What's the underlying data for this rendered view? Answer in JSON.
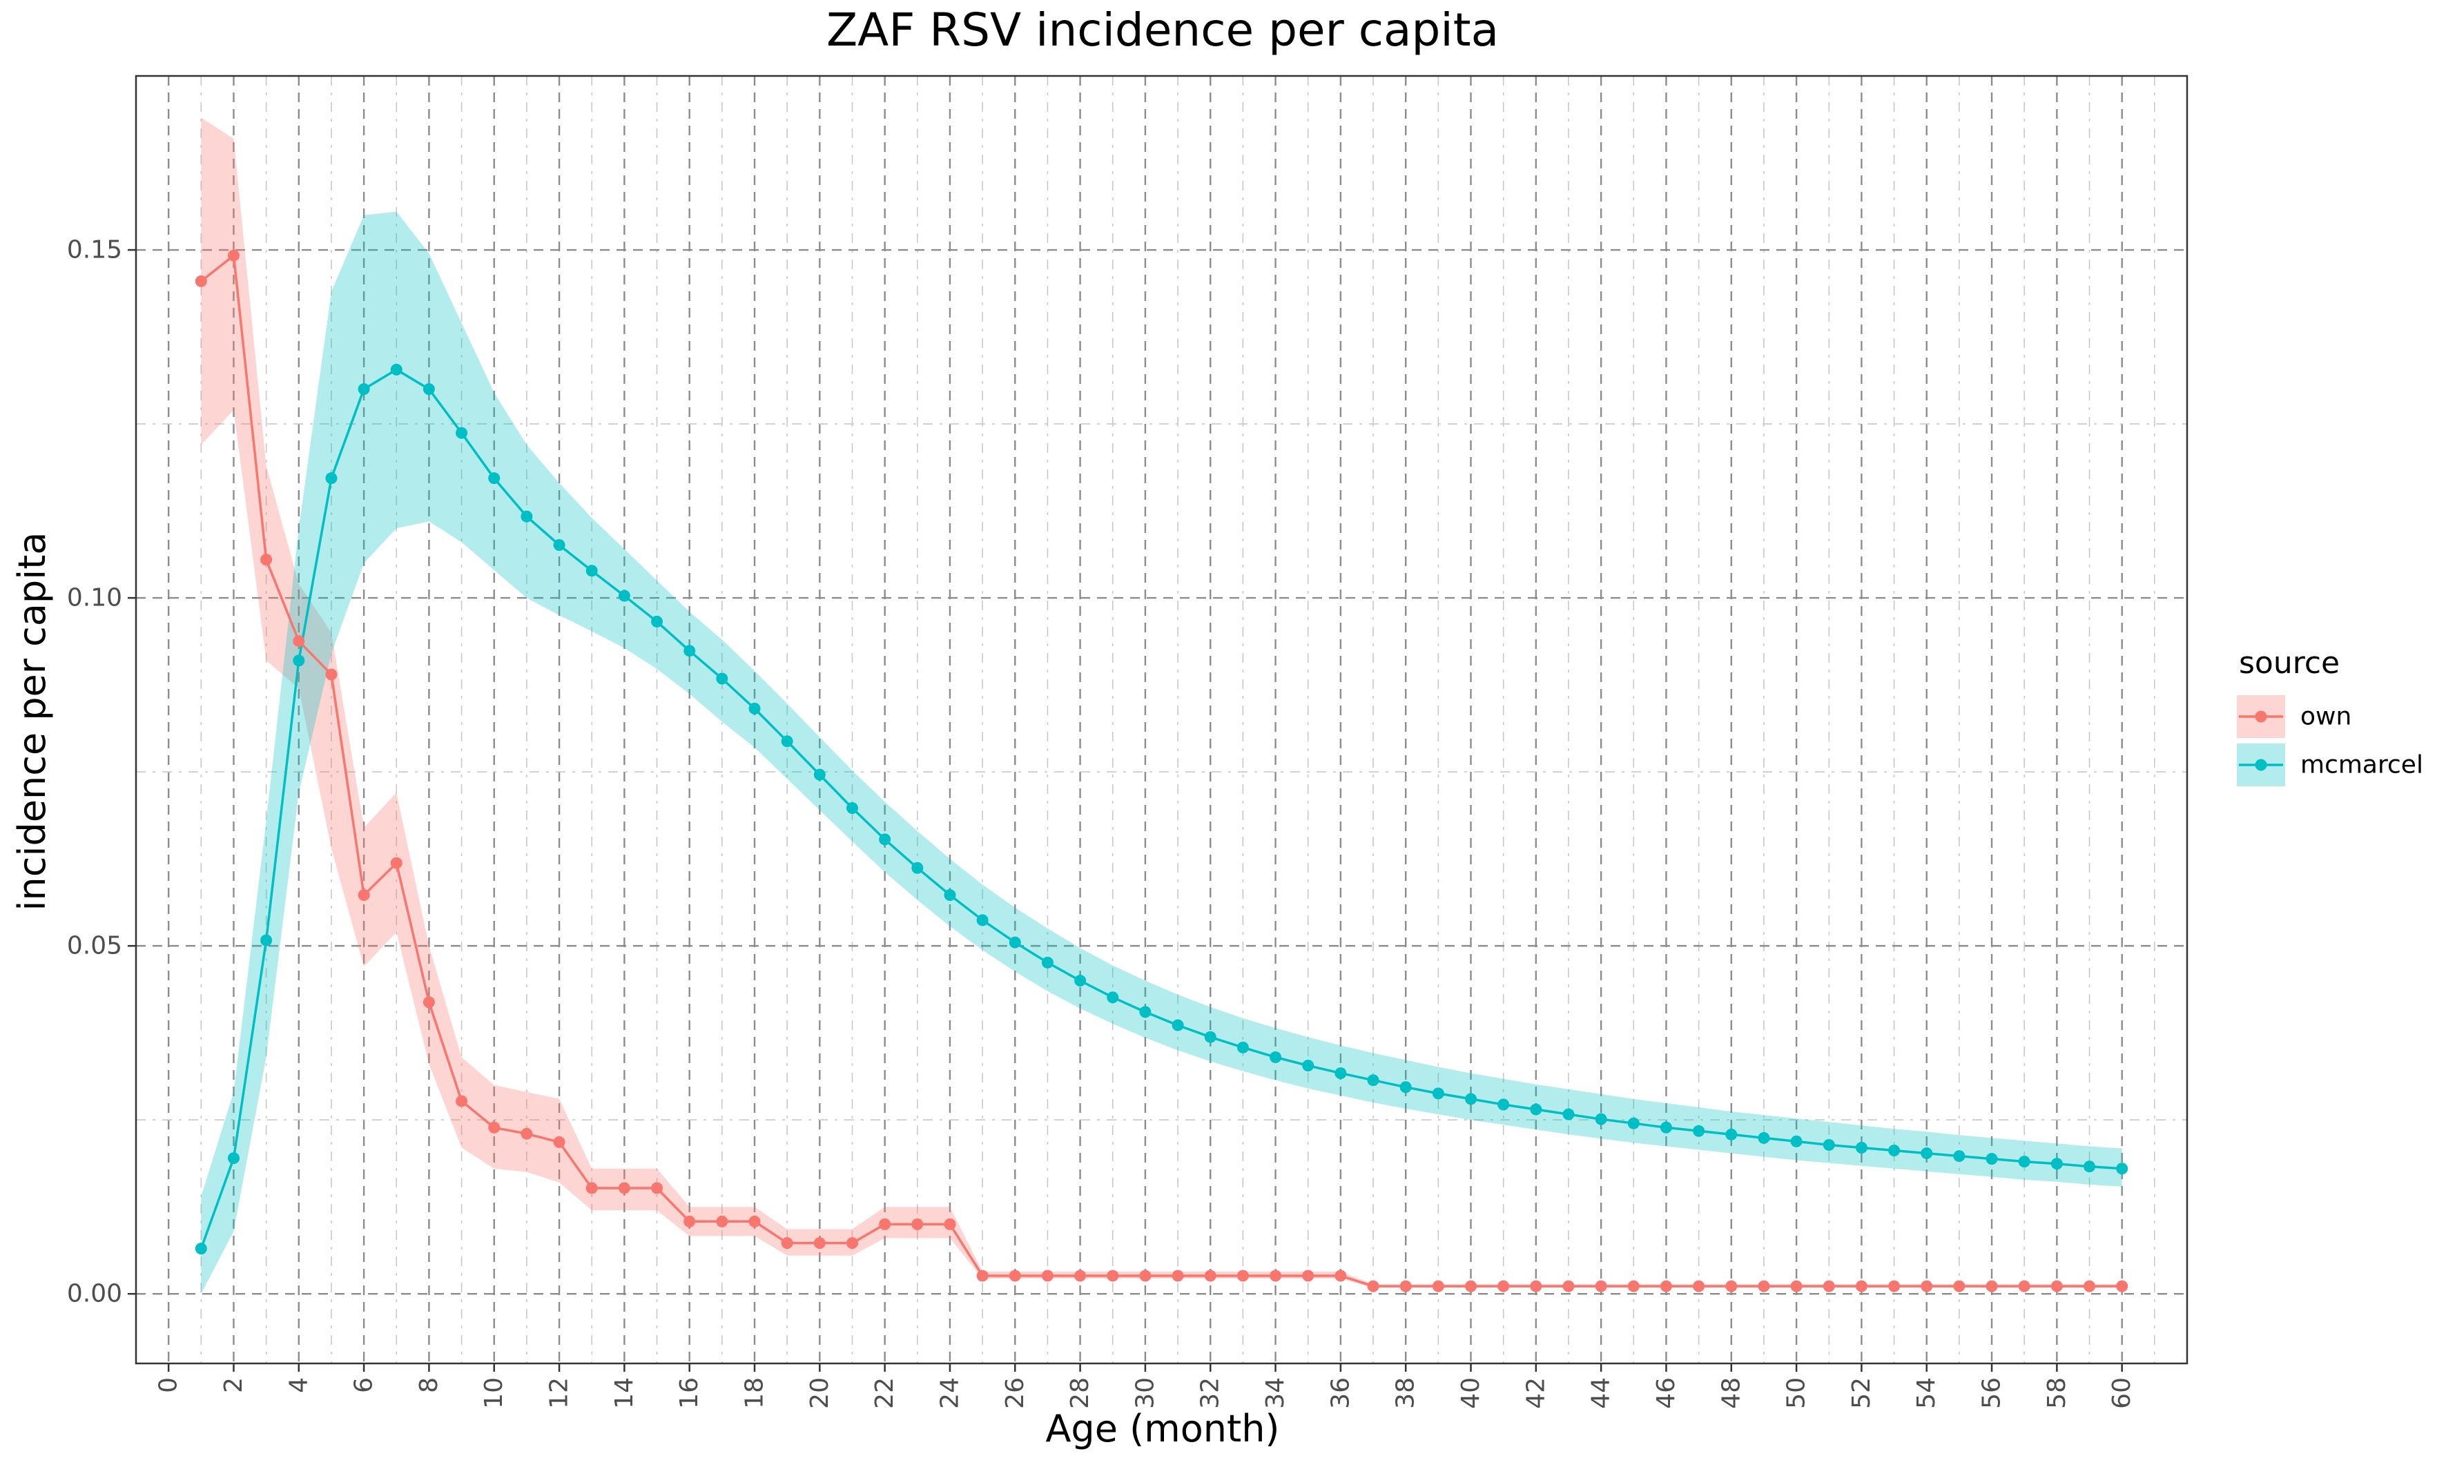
{
  "chart_data": {
    "type": "line",
    "title": "ZAF RSV incidence per capita",
    "xlabel": "Age (month)",
    "ylabel": "incidence per capita",
    "xlim": [
      -1,
      62
    ],
    "ylim": [
      -0.01,
      0.175
    ],
    "x_ticks": [
      0,
      2,
      4,
      6,
      8,
      10,
      12,
      14,
      16,
      18,
      20,
      22,
      24,
      26,
      28,
      30,
      32,
      34,
      36,
      38,
      40,
      42,
      44,
      46,
      48,
      50,
      52,
      54,
      56,
      58,
      60
    ],
    "y_ticks": [
      0.0,
      0.05,
      0.1,
      0.15
    ],
    "y_tick_labels": [
      "0.00",
      "0.05",
      "0.10",
      "0.15"
    ],
    "grid": true,
    "legend": {
      "title": "source",
      "placement": "right"
    },
    "series": [
      {
        "name": "own",
        "color": "#F8766D",
        "fill": "#F8766D",
        "x": [
          1,
          2,
          3,
          4,
          5,
          6,
          7,
          8,
          9,
          10,
          11,
          12,
          13,
          14,
          15,
          16,
          17,
          18,
          19,
          20,
          21,
          22,
          23,
          24,
          25,
          26,
          27,
          28,
          29,
          30,
          31,
          32,
          33,
          34,
          35,
          36,
          37,
          38,
          39,
          40,
          41,
          42,
          43,
          44,
          45,
          46,
          47,
          48,
          49,
          50,
          51,
          52,
          53,
          54,
          55,
          56,
          57,
          58,
          59,
          60
        ],
        "values": [
          0.1455,
          0.1492,
          0.1055,
          0.0938,
          0.089,
          0.0573,
          0.0619,
          0.0419,
          0.0277,
          0.0239,
          0.023,
          0.0218,
          0.0152,
          0.0152,
          0.0152,
          0.0104,
          0.0104,
          0.0104,
          0.0073,
          0.0073,
          0.0073,
          0.01,
          0.01,
          0.01,
          0.0026,
          0.0026,
          0.0026,
          0.0026,
          0.0026,
          0.0026,
          0.0026,
          0.0026,
          0.0026,
          0.0026,
          0.0026,
          0.0026,
          0.0011,
          0.0011,
          0.0011,
          0.0011,
          0.0011,
          0.0011,
          0.0011,
          0.0011,
          0.0011,
          0.0011,
          0.0011,
          0.0011,
          0.0011,
          0.0011,
          0.0011,
          0.0011,
          0.0011,
          0.0011,
          0.0011,
          0.0011,
          0.0011,
          0.0011,
          0.0011,
          0.0011
        ],
        "lower": [
          0.122,
          0.127,
          0.091,
          0.087,
          0.064,
          0.047,
          0.052,
          0.033,
          0.021,
          0.018,
          0.0175,
          0.016,
          0.012,
          0.012,
          0.012,
          0.0083,
          0.0083,
          0.0083,
          0.0055,
          0.0055,
          0.0055,
          0.008,
          0.008,
          0.008,
          0.0022,
          0.0022,
          0.0022,
          0.0022,
          0.0022,
          0.0022,
          0.0022,
          0.0022,
          0.0022,
          0.0022,
          0.0022,
          0.0022,
          0.0009,
          0.0009,
          0.0009,
          0.0009,
          0.0009,
          0.0009,
          0.0009,
          0.0009,
          0.0009,
          0.0009,
          0.0009,
          0.0009,
          0.0009,
          0.0009,
          0.0009,
          0.0009,
          0.0009,
          0.0009,
          0.0009,
          0.0009,
          0.0009,
          0.0009,
          0.0009,
          0.0009
        ],
        "upper": [
          0.169,
          0.166,
          0.119,
          0.102,
          0.095,
          0.067,
          0.072,
          0.05,
          0.034,
          0.03,
          0.029,
          0.028,
          0.018,
          0.018,
          0.018,
          0.0125,
          0.0125,
          0.0125,
          0.0093,
          0.0093,
          0.0093,
          0.0125,
          0.0125,
          0.0125,
          0.0032,
          0.0032,
          0.0032,
          0.0032,
          0.0032,
          0.0032,
          0.0032,
          0.0032,
          0.0032,
          0.0032,
          0.0032,
          0.0032,
          0.0014,
          0.0014,
          0.0014,
          0.0014,
          0.0014,
          0.0014,
          0.0014,
          0.0014,
          0.0014,
          0.0014,
          0.0014,
          0.0014,
          0.0014,
          0.0014,
          0.0014,
          0.0014,
          0.0014,
          0.0014,
          0.0014,
          0.0014,
          0.0014,
          0.0014,
          0.0014,
          0.0014
        ]
      },
      {
        "name": "mcmarcel",
        "color": "#00BFC4",
        "fill": "#00BFC4",
        "x": [
          1,
          2,
          3,
          4,
          5,
          6,
          7,
          8,
          9,
          10,
          11,
          12,
          13,
          14,
          15,
          16,
          17,
          18,
          19,
          20,
          21,
          22,
          23,
          24,
          25,
          26,
          27,
          28,
          29,
          30,
          31,
          32,
          33,
          34,
          35,
          36,
          37,
          38,
          39,
          40,
          41,
          42,
          43,
          44,
          45,
          46,
          47,
          48,
          49,
          50,
          51,
          52,
          53,
          54,
          55,
          56,
          57,
          58,
          59,
          60
        ],
        "values": [
          0.0065,
          0.0195,
          0.0508,
          0.091,
          0.1172,
          0.13,
          0.1328,
          0.13,
          0.1237,
          0.1172,
          0.1117,
          0.1076,
          0.1039,
          0.1003,
          0.0966,
          0.0924,
          0.0884,
          0.0841,
          0.0794,
          0.0746,
          0.0698,
          0.0653,
          0.0612,
          0.0573,
          0.0537,
          0.0505,
          0.0476,
          0.045,
          0.0426,
          0.0405,
          0.0386,
          0.0369,
          0.0354,
          0.034,
          0.0328,
          0.0317,
          0.0307,
          0.0297,
          0.0288,
          0.028,
          0.0272,
          0.0265,
          0.0258,
          0.0251,
          0.0245,
          0.0239,
          0.0234,
          0.0229,
          0.0224,
          0.0219,
          0.0214,
          0.021,
          0.0206,
          0.0202,
          0.0198,
          0.0194,
          0.019,
          0.0187,
          0.0183,
          0.018
        ],
        "lower": [
          0.0,
          0.009,
          0.034,
          0.072,
          0.092,
          0.105,
          0.11,
          0.111,
          0.108,
          0.104,
          0.1,
          0.0975,
          0.0952,
          0.0928,
          0.0898,
          0.0862,
          0.0822,
          0.0785,
          0.074,
          0.0695,
          0.065,
          0.0606,
          0.0566,
          0.0528,
          0.0494,
          0.0463,
          0.0435,
          0.041,
          0.0388,
          0.0368,
          0.035,
          0.0334,
          0.032,
          0.0307,
          0.0295,
          0.0285,
          0.0275,
          0.0266,
          0.0258,
          0.025,
          0.0243,
          0.0236,
          0.0229,
          0.0223,
          0.0217,
          0.0212,
          0.0207,
          0.0202,
          0.0197,
          0.0192,
          0.0188,
          0.0184,
          0.018,
          0.0176,
          0.0172,
          0.0168,
          0.0164,
          0.0161,
          0.0157,
          0.0154
        ],
        "upper": [
          0.014,
          0.029,
          0.068,
          0.11,
          0.144,
          0.155,
          0.1555,
          0.1495,
          0.1395,
          0.1295,
          0.122,
          0.1165,
          0.1115,
          0.107,
          0.1025,
          0.098,
          0.094,
          0.0895,
          0.0848,
          0.08,
          0.0752,
          0.0707,
          0.0665,
          0.0625,
          0.0588,
          0.0555,
          0.0525,
          0.0497,
          0.0472,
          0.045,
          0.043,
          0.0412,
          0.0396,
          0.0382,
          0.0369,
          0.0357,
          0.0346,
          0.0336,
          0.0326,
          0.0317,
          0.0309,
          0.0301,
          0.0294,
          0.0287,
          0.028,
          0.0274,
          0.0268,
          0.0262,
          0.0257,
          0.0252,
          0.0247,
          0.0242,
          0.0237,
          0.0233,
          0.0228,
          0.0224,
          0.022,
          0.0216,
          0.0212,
          0.0209
        ]
      }
    ]
  }
}
